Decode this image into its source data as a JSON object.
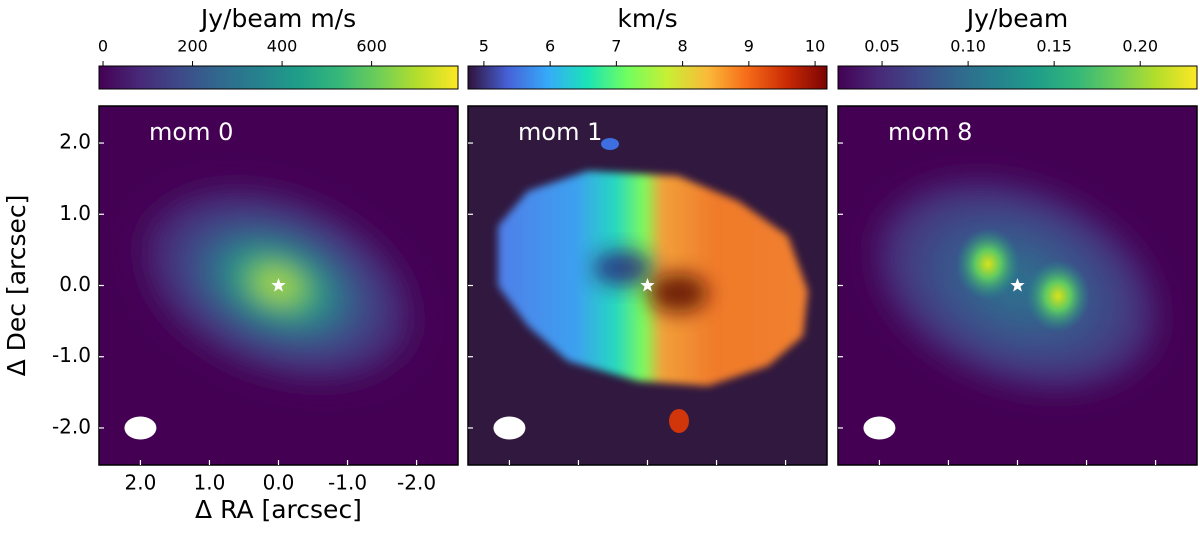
{
  "chart_data": [
    {
      "type": "image",
      "annotation": "mom 0",
      "colorbar_label": "Jy/beam m/s",
      "colormap": "viridis",
      "clim": [
        -9,
        793
      ],
      "cticks": [
        0,
        200,
        400,
        600
      ],
      "xlabel": "Δ RA [arcsec]",
      "ylabel": "Δ Dec [arcsec]",
      "xlim": [
        2.6,
        -2.6
      ],
      "ylim": [
        -2.52,
        2.52
      ],
      "xticks": [
        {
          "value": 2,
          "label": "2.0"
        },
        {
          "value": 1,
          "label": "1.0"
        },
        {
          "value": 0,
          "label": "0.0"
        },
        {
          "value": -1,
          "label": "-1.0"
        },
        {
          "value": -2,
          "label": "-2.0"
        }
      ],
      "yticks": [
        {
          "value": -2,
          "label": "-2.0"
        },
        {
          "value": -1,
          "label": "-1.0"
        },
        {
          "value": 0,
          "label": "0.0"
        },
        {
          "value": 1,
          "label": "1.0"
        },
        {
          "value": 2,
          "label": "2.0"
        }
      ]
    },
    {
      "type": "image",
      "annotation": "mom 1",
      "colorbar_label": "km/s",
      "colormap": "turbo",
      "clim": [
        4.76,
        10.18
      ],
      "cticks": [
        5,
        6,
        7,
        8,
        9,
        10
      ],
      "xlim": [
        2.6,
        -2.6
      ],
      "ylim": [
        -2.52,
        2.52
      ],
      "xticks": [
        2,
        1,
        0,
        -1,
        -2
      ],
      "yticks": [
        -2,
        -1,
        0,
        1,
        2
      ]
    },
    {
      "type": "image",
      "annotation": "mom 8",
      "colorbar_label": "Jy/beam",
      "colormap": "viridis",
      "clim": [
        0.0244,
        0.233
      ],
      "cticks": [
        0.05,
        {
          "value": 0.1,
          "label": "0.10"
        },
        0.15,
        {
          "value": 0.2,
          "label": "0.20"
        }
      ],
      "xlim": [
        2.6,
        -2.6
      ],
      "ylim": [
        -2.52,
        2.52
      ],
      "xticks": [
        2,
        1,
        0,
        -1,
        -2
      ],
      "yticks": [
        -2,
        -1,
        0,
        1,
        2
      ]
    }
  ]
}
